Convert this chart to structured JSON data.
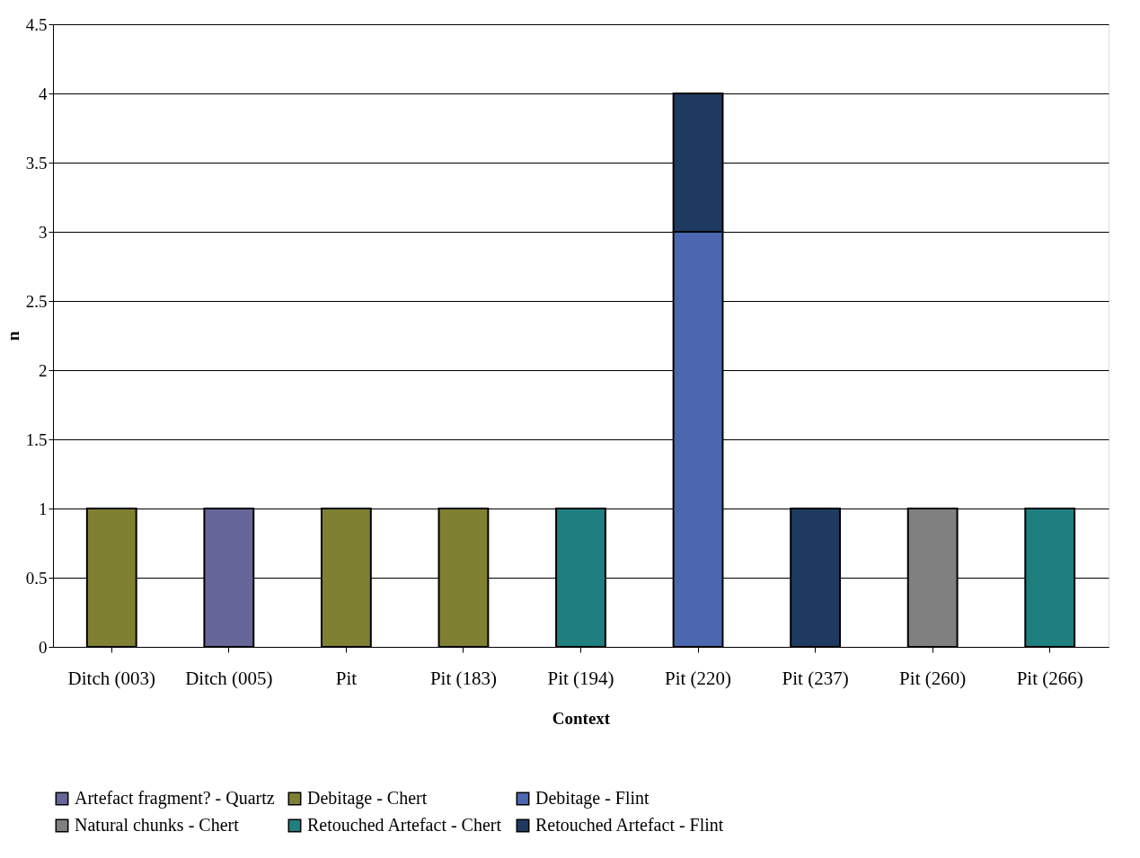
{
  "chart_data": {
    "type": "bar",
    "stacked": true,
    "xlabel": "Context",
    "ylabel": "n",
    "categories": [
      "Ditch (003)",
      "Ditch (005)",
      "Pit",
      "Pit (183)",
      "Pit (194)",
      "Pit (220)",
      "Pit (237)",
      "Pit (260)",
      "Pit (266)"
    ],
    "series": [
      {
        "name": "Artefact fragment? - Quartz",
        "color": "#666699",
        "values": [
          null,
          1,
          null,
          null,
          null,
          null,
          null,
          null,
          null
        ]
      },
      {
        "name": "Debitage - Chert",
        "color": "#808033",
        "values": [
          1,
          null,
          1,
          1,
          null,
          null,
          null,
          null,
          null
        ]
      },
      {
        "name": "Debitage - Flint",
        "color": "#4a67b0",
        "values": [
          null,
          null,
          null,
          null,
          null,
          3,
          null,
          null,
          null
        ]
      },
      {
        "name": "Natural chunks - Chert",
        "color": "#808080",
        "values": [
          null,
          null,
          null,
          null,
          null,
          null,
          null,
          1,
          null
        ]
      },
      {
        "name": "Retouched Artefact - Chert",
        "color": "#1f7f7f",
        "values": [
          null,
          null,
          null,
          null,
          1,
          null,
          null,
          null,
          1
        ]
      },
      {
        "name": "Retouched Artefact - Flint",
        "color": "#1f3a60",
        "values": [
          null,
          null,
          null,
          null,
          null,
          1,
          1,
          null,
          null
        ]
      }
    ],
    "ylim": [
      0,
      4.5
    ],
    "yticks": [
      0,
      0.5,
      1,
      1.5,
      2,
      2.5,
      3,
      3.5,
      4,
      4.5
    ],
    "grid": "y",
    "legend": "bottom"
  }
}
